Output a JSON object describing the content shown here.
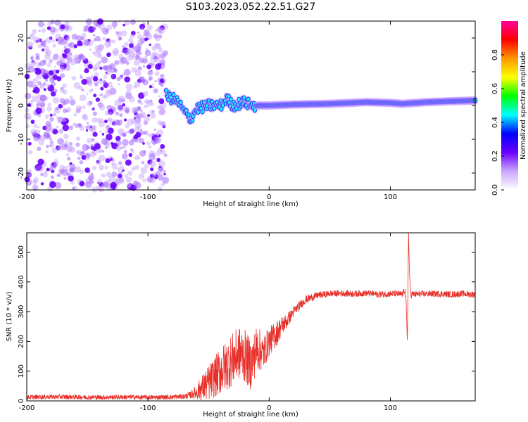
{
  "title": "S103.2023.052.22.51.G27",
  "colors": {
    "snr_line": "#e8302a",
    "colormap": [
      "#ffffff",
      "#c9a6ff",
      "#6a00ff",
      "#0000ff",
      "#00ffff",
      "#00ff00",
      "#ffff00",
      "#ff9900",
      "#ff0000",
      "#ff0099"
    ]
  },
  "chart_data": [
    {
      "type": "heatmap",
      "xlabel": "Height of straight line (km)",
      "ylabel": "Frequency (Hz)",
      "xlim": [
        -200,
        170
      ],
      "ylim": [
        -25,
        25
      ],
      "x_ticks": [
        -200,
        -100,
        0,
        100
      ],
      "x_tick_labels": [
        "-200",
        "-100",
        "0",
        "100"
      ],
      "y_ticks": [
        -20,
        -10,
        0,
        10,
        20
      ],
      "y_tick_labels": [
        "-20",
        "-10",
        "0",
        "10",
        "20"
      ],
      "colorbar": {
        "label": "Normalized spectral amplitude",
        "range": [
          0,
          1
        ],
        "ticks": [
          0.0,
          0.2,
          0.4,
          0.6,
          0.8
        ],
        "tick_labels": [
          "0.0",
          "0.2",
          "0.4",
          "0.6",
          "0.8"
        ]
      },
      "features": {
        "noise_region_x": [
          -200,
          -85
        ],
        "signal_ridge_freq_hz": [
          [
            -85,
            3
          ],
          [
            -75,
            1
          ],
          [
            -70,
            -2
          ],
          [
            -65,
            -4
          ],
          [
            -60,
            -1
          ],
          [
            -50,
            0
          ],
          [
            -40,
            0
          ],
          [
            -35,
            2
          ],
          [
            -30,
            0
          ],
          [
            -20,
            1
          ],
          [
            -15,
            0
          ],
          [
            0,
            0
          ],
          [
            20,
            0.3
          ],
          [
            50,
            0.5
          ],
          [
            80,
            1
          ],
          [
            100,
            0.8
          ],
          [
            110,
            0.5
          ],
          [
            130,
            1
          ],
          [
            170,
            1.5
          ]
        ]
      }
    },
    {
      "type": "line",
      "xlabel": "Height of straight line (km)",
      "ylabel": "SNR (10 * v/v)",
      "xlim": [
        -200,
        170
      ],
      "ylim": [
        0,
        565
      ],
      "x_ticks": [
        -200,
        -100,
        0,
        100
      ],
      "x_tick_labels": [
        "-200",
        "-100",
        "0",
        "100"
      ],
      "y_ticks": [
        0,
        100,
        200,
        300,
        400,
        500
      ],
      "y_tick_labels": [
        "0",
        "100",
        "200",
        "300",
        "400",
        "500"
      ],
      "series": [
        {
          "x": [
            -200,
            -180,
            -160,
            -140,
            -120,
            -100,
            -80,
            -70,
            -65,
            -60,
            -55,
            -50,
            -45,
            -40,
            -35,
            -30,
            -25,
            -20,
            -15,
            -10,
            -5,
            0,
            5,
            10,
            15,
            20,
            25,
            30,
            40,
            50,
            60,
            70,
            80,
            90,
            100,
            105,
            110,
            112,
            113,
            114,
            115,
            116,
            117,
            118,
            120,
            130,
            140,
            150,
            160,
            170
          ],
          "y": [
            12,
            14,
            13,
            12,
            13,
            12,
            13,
            15,
            20,
            30,
            45,
            60,
            80,
            100,
            120,
            140,
            160,
            150,
            120,
            180,
            160,
            200,
            220,
            250,
            270,
            300,
            320,
            340,
            355,
            360,
            362,
            360,
            362,
            358,
            360,
            360,
            358,
            375,
            330,
            200,
            560,
            400,
            355,
            360,
            358,
            360,
            360,
            358,
            360,
            358
          ],
          "noise_amplitude": [
            8,
            8,
            8,
            8,
            8,
            8,
            8,
            9,
            12,
            25,
            45,
            60,
            70,
            80,
            85,
            90,
            90,
            90,
            85,
            80,
            60,
            50,
            45,
            35,
            25,
            18,
            15,
            14,
            12,
            11,
            11,
            11,
            11,
            11,
            11,
            11,
            11,
            11,
            11,
            11,
            11,
            11,
            11,
            11,
            11,
            11,
            11,
            11,
            11,
            11
          ]
        }
      ]
    }
  ]
}
